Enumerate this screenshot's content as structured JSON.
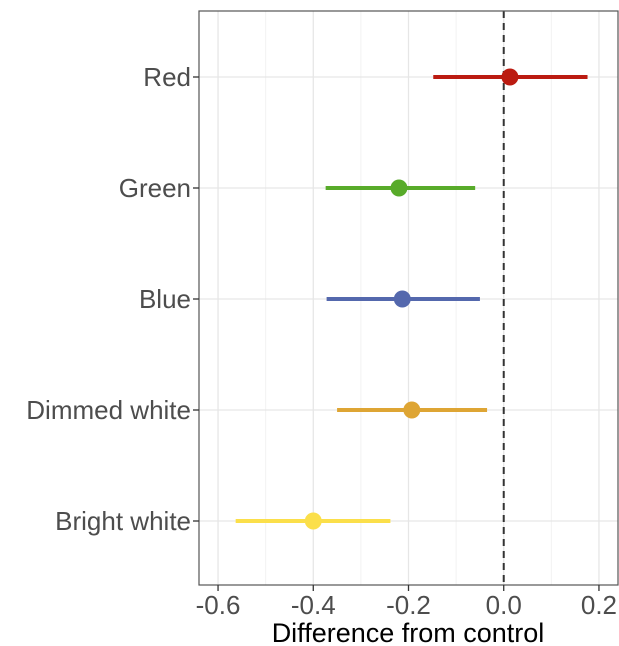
{
  "chart_data": {
    "type": "forest",
    "xlabel": "Difference from control",
    "ylabel": "",
    "title": "",
    "xlim": [
      -0.64,
      0.24
    ],
    "x_ticks": [
      -0.6,
      -0.4,
      -0.2,
      0.0,
      0.2
    ],
    "x_tick_labels": [
      "-0.6",
      "-0.4",
      "-0.2",
      "0.0",
      "0.2"
    ],
    "reference_line": 0.0,
    "grid": true,
    "legend": "none",
    "categories": [
      "Red",
      "Green",
      "Blue",
      "Dimmed white",
      "Bright white"
    ],
    "estimates": [
      0.013,
      -0.22,
      -0.213,
      -0.193,
      -0.4
    ],
    "lower": [
      -0.148,
      -0.374,
      -0.372,
      -0.35,
      -0.563
    ],
    "upper": [
      0.176,
      -0.06,
      -0.05,
      -0.035,
      -0.238
    ],
    "colors": [
      "#bb1b11",
      "#58ab2a",
      "#5468ad",
      "#dea534",
      "#fbdf4a"
    ]
  }
}
